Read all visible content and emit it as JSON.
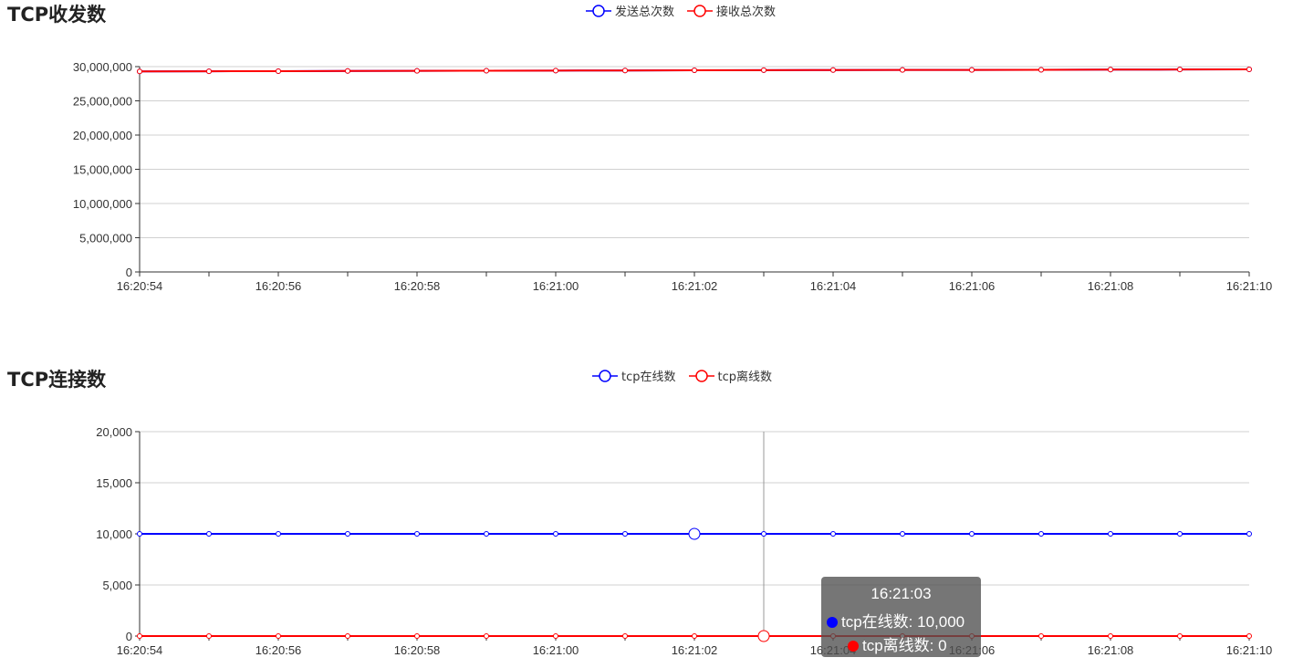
{
  "chart_data": [
    {
      "type": "line",
      "title": "TCP收发数",
      "categories": [
        "16:20:54",
        "16:20:55",
        "16:20:56",
        "16:20:57",
        "16:20:58",
        "16:20:59",
        "16:21:00",
        "16:21:01",
        "16:21:02",
        "16:21:03",
        "16:21:04",
        "16:21:05",
        "16:21:06",
        "16:21:07",
        "16:21:08",
        "16:21:09",
        "16:21:10"
      ],
      "x_tick_labels": [
        "16:20:54",
        "16:20:56",
        "16:20:58",
        "16:21:00",
        "16:21:02",
        "16:21:04",
        "16:21:06",
        "16:21:08",
        "16:21:10"
      ],
      "y_tick_labels": [
        "0",
        "5,000,000",
        "10,000,000",
        "15,000,000",
        "20,000,000",
        "25,000,000",
        "30,000,000"
      ],
      "ylim": [
        0,
        30000000
      ],
      "grid": true,
      "legend_position": "top-center",
      "series": [
        {
          "name": "发送总次数",
          "color": "#0000ff",
          "values": [
            29300000,
            29320000,
            29340000,
            29360000,
            29380000,
            29400000,
            29420000,
            29440000,
            29460000,
            29480000,
            29500000,
            29510000,
            29520000,
            29540000,
            29560000,
            29580000,
            29600000
          ]
        },
        {
          "name": "接收总次数",
          "color": "#ff0000",
          "values": [
            29300000,
            29320000,
            29340000,
            29360000,
            29380000,
            29400000,
            29420000,
            29440000,
            29460000,
            29480000,
            29500000,
            29510000,
            29520000,
            29540000,
            29560000,
            29580000,
            29600000
          ]
        }
      ]
    },
    {
      "type": "line",
      "title": "TCP连接数",
      "categories": [
        "16:20:54",
        "16:20:55",
        "16:20:56",
        "16:20:57",
        "16:20:58",
        "16:20:59",
        "16:21:00",
        "16:21:01",
        "16:21:02",
        "16:21:03",
        "16:21:04",
        "16:21:05",
        "16:21:06",
        "16:21:07",
        "16:21:08",
        "16:21:09",
        "16:21:10"
      ],
      "x_tick_labels": [
        "16:20:54",
        "16:20:56",
        "16:20:58",
        "16:21:00",
        "16:21:02",
        "16:21:04",
        "16:21:06",
        "16:21:08",
        "16:21:10"
      ],
      "y_tick_labels": [
        "0",
        "5,000",
        "10,000",
        "15,000",
        "20,000"
      ],
      "ylim": [
        0,
        20000
      ],
      "grid": true,
      "legend_position": "top-center",
      "series": [
        {
          "name": "tcp在线数",
          "color": "#0000ff",
          "values": [
            10000,
            10000,
            10000,
            10000,
            10000,
            10000,
            10000,
            10000,
            10000,
            10000,
            10000,
            10000,
            10000,
            10000,
            10000,
            10000,
            10000
          ]
        },
        {
          "name": "tcp离线数",
          "color": "#ff0000",
          "values": [
            0,
            0,
            0,
            0,
            0,
            0,
            0,
            0,
            0,
            0,
            0,
            0,
            0,
            0,
            0,
            0,
            0
          ]
        }
      ],
      "tooltip": {
        "title": "16:21:03",
        "rows": [
          {
            "label": "tcp在线数: 10,000",
            "color": "#0000ff"
          },
          {
            "label": "tcp离线数: 0",
            "color": "#ff0000"
          }
        ]
      }
    }
  ]
}
